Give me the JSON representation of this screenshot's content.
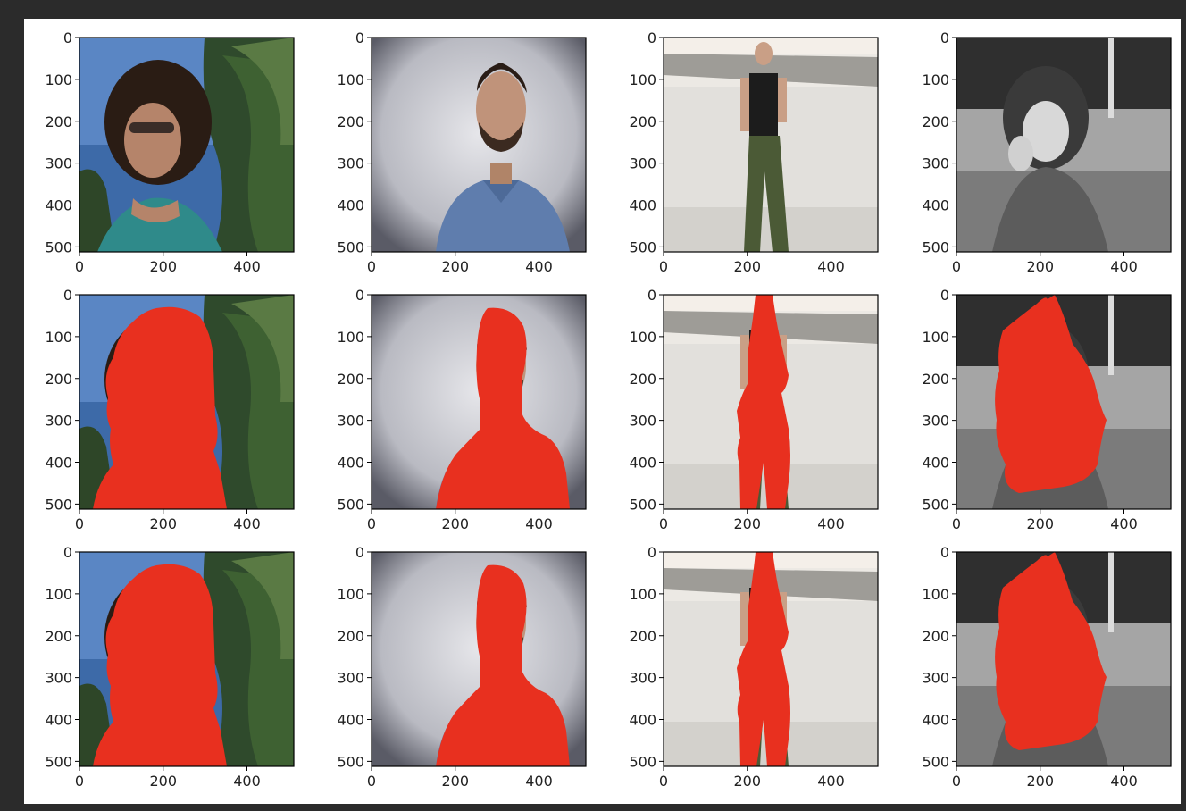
{
  "window": {
    "background": "#2b2b2b",
    "figure_background": "#ffffff"
  },
  "colors": {
    "mask": "#e8301f",
    "axis": "#000000",
    "tick_label": "#222222"
  },
  "axes": {
    "x_ticks": [
      "0",
      "200",
      "400"
    ],
    "y_ticks": [
      "0",
      "100",
      "200",
      "300",
      "400",
      "500"
    ]
  },
  "chart_data": [
    {
      "type": "image",
      "row": 1,
      "col": 1,
      "content": "woman with curly hair and sunglasses, palm fronds, blue sky",
      "mask": false,
      "xlim": [
        0,
        512
      ],
      "ylim": [
        512,
        0
      ],
      "x_ticks": [
        0,
        200,
        400
      ],
      "y_ticks": [
        0,
        100,
        200,
        300,
        400,
        500
      ]
    },
    {
      "type": "image",
      "row": 1,
      "col": 2,
      "content": "bearded man in blue shirt, grey textured wall",
      "mask": false,
      "xlim": [
        0,
        512
      ],
      "ylim": [
        512,
        0
      ],
      "x_ticks": [
        0,
        200,
        400
      ],
      "y_ticks": [
        0,
        100,
        200,
        300,
        400,
        500
      ]
    },
    {
      "type": "image",
      "row": 1,
      "col": 3,
      "content": "woman in dark top and green cargo pants, beach",
      "mask": false,
      "xlim": [
        0,
        512
      ],
      "ylim": [
        512,
        0
      ],
      "x_ticks": [
        0,
        200,
        400
      ],
      "y_ticks": [
        0,
        100,
        200,
        300,
        400,
        500
      ]
    },
    {
      "type": "image",
      "row": 1,
      "col": 4,
      "content": "black and white photo, woman lying in grass",
      "mask": false,
      "xlim": [
        0,
        512
      ],
      "ylim": [
        512,
        0
      ],
      "x_ticks": [
        0,
        200,
        400
      ],
      "y_ticks": [
        0,
        100,
        200,
        300,
        400,
        500
      ]
    },
    {
      "type": "image",
      "row": 2,
      "col": 1,
      "content": "person segmentation mask overlay",
      "mask": true,
      "xlim": [
        0,
        512
      ],
      "ylim": [
        512,
        0
      ],
      "x_ticks": [
        0,
        200,
        400
      ],
      "y_ticks": [
        0,
        100,
        200,
        300,
        400,
        500
      ]
    },
    {
      "type": "image",
      "row": 2,
      "col": 2,
      "content": "person segmentation mask overlay",
      "mask": true,
      "xlim": [
        0,
        512
      ],
      "ylim": [
        512,
        0
      ],
      "x_ticks": [
        0,
        200,
        400
      ],
      "y_ticks": [
        0,
        100,
        200,
        300,
        400,
        500
      ]
    },
    {
      "type": "image",
      "row": 2,
      "col": 3,
      "content": "person segmentation mask overlay",
      "mask": true,
      "xlim": [
        0,
        512
      ],
      "ylim": [
        512,
        0
      ],
      "x_ticks": [
        0,
        200,
        400
      ],
      "y_ticks": [
        0,
        100,
        200,
        300,
        400,
        500
      ]
    },
    {
      "type": "image",
      "row": 2,
      "col": 4,
      "content": "person segmentation mask overlay",
      "mask": true,
      "xlim": [
        0,
        512
      ],
      "ylim": [
        512,
        0
      ],
      "x_ticks": [
        0,
        200,
        400
      ],
      "y_ticks": [
        0,
        100,
        200,
        300,
        400,
        500
      ]
    },
    {
      "type": "image",
      "row": 3,
      "col": 1,
      "content": "person segmentation mask overlay",
      "mask": true,
      "xlim": [
        0,
        512
      ],
      "ylim": [
        512,
        0
      ],
      "x_ticks": [
        0,
        200,
        400
      ],
      "y_ticks": [
        0,
        100,
        200,
        300,
        400,
        500
      ]
    },
    {
      "type": "image",
      "row": 3,
      "col": 2,
      "content": "person segmentation mask overlay",
      "mask": true,
      "xlim": [
        0,
        512
      ],
      "ylim": [
        512,
        0
      ],
      "x_ticks": [
        0,
        200,
        400
      ],
      "y_ticks": [
        0,
        100,
        200,
        300,
        400,
        500
      ]
    },
    {
      "type": "image",
      "row": 3,
      "col": 3,
      "content": "person segmentation mask overlay",
      "mask": true,
      "xlim": [
        0,
        512
      ],
      "ylim": [
        512,
        0
      ],
      "x_ticks": [
        0,
        200,
        400
      ],
      "y_ticks": [
        0,
        100,
        200,
        300,
        400,
        500
      ]
    },
    {
      "type": "image",
      "row": 3,
      "col": 4,
      "content": "person segmentation mask overlay",
      "mask": true,
      "xlim": [
        0,
        512
      ],
      "ylim": [
        512,
        0
      ],
      "x_ticks": [
        0,
        200,
        400
      ],
      "y_ticks": [
        0,
        100,
        200,
        300,
        400,
        500
      ]
    }
  ]
}
